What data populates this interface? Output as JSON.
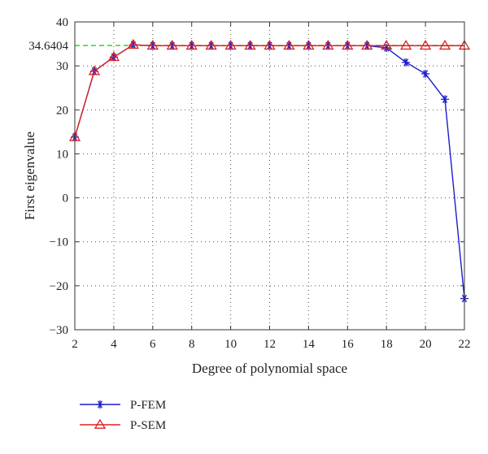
{
  "chart_data": {
    "type": "line",
    "xlabel": "Degree of polynomial space",
    "ylabel": "First eigenvalue",
    "xlim": [
      2,
      22
    ],
    "ylim": [
      -30,
      40
    ],
    "x_ticks": [
      "2",
      "4",
      "6",
      "8",
      "10",
      "12",
      "14",
      "16",
      "18",
      "20",
      "22"
    ],
    "y_ticks": [
      "−30",
      "−20",
      "−10",
      "0",
      "10",
      "20",
      "30",
      "40"
    ],
    "grid": true,
    "reference_line": {
      "value": 34.6404,
      "label": "34.6404",
      "color": "#22dd22"
    },
    "x": [
      2,
      3,
      4,
      5,
      6,
      7,
      8,
      9,
      10,
      11,
      12,
      13,
      14,
      15,
      16,
      17,
      18,
      19,
      20,
      21,
      22
    ],
    "series": [
      {
        "name": "P-FEM",
        "color": "#1c1ccc",
        "marker": "star",
        "values": [
          13.8,
          28.8,
          32.0,
          34.8,
          34.6,
          34.6,
          34.6,
          34.6,
          34.6,
          34.6,
          34.6,
          34.6,
          34.6,
          34.6,
          34.6,
          34.6,
          34.1,
          30.8,
          28.2,
          22.4,
          -22.9
        ]
      },
      {
        "name": "P-SEM",
        "color": "#dd2222",
        "marker": "triangle",
        "values": [
          13.8,
          28.8,
          32.0,
          34.8,
          34.6,
          34.6,
          34.6,
          34.6,
          34.6,
          34.6,
          34.6,
          34.6,
          34.6,
          34.6,
          34.6,
          34.6,
          34.6,
          34.6,
          34.6,
          34.6,
          34.6
        ]
      }
    ],
    "legend_position": "bottom-left"
  }
}
